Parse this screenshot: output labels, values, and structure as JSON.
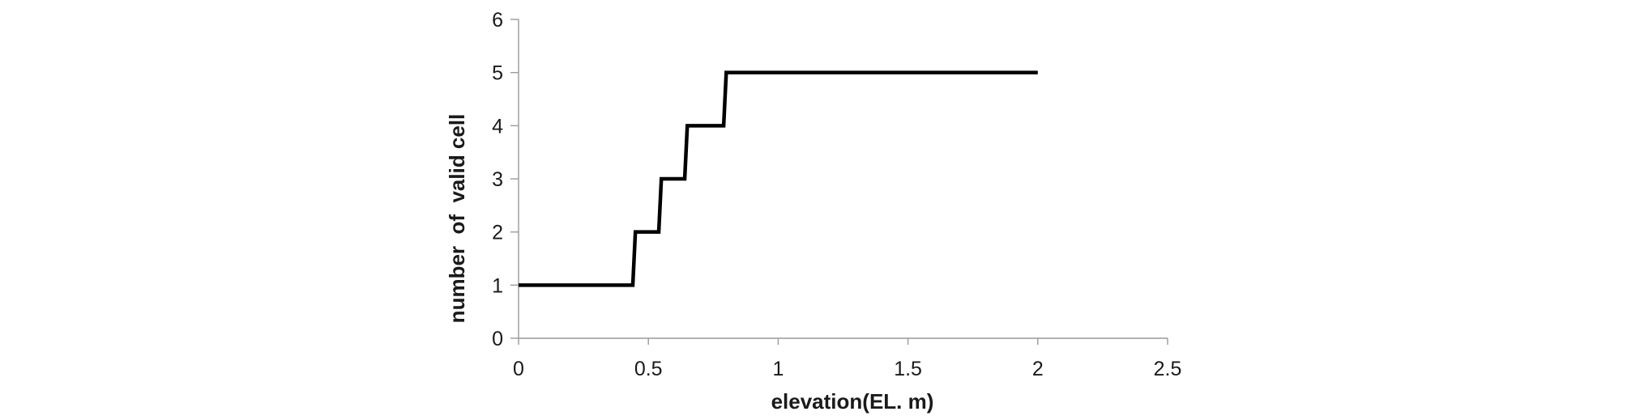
{
  "chart_data": {
    "type": "line",
    "subtype": "step",
    "title": "",
    "xlabel": "elevation(EL. m)",
    "ylabel": "number  of  valid cell",
    "xlim": [
      0,
      2.5
    ],
    "ylim": [
      0,
      6
    ],
    "x_ticks": [
      0,
      0.5,
      1,
      1.5,
      2,
      2.5
    ],
    "x_tick_labels": [
      "0",
      "0.5",
      "1",
      "1.5",
      "2",
      "2.5"
    ],
    "y_ticks": [
      0,
      1,
      2,
      3,
      4,
      5,
      6
    ],
    "y_tick_labels": [
      "0",
      "1",
      "2",
      "3",
      "4",
      "5",
      "6"
    ],
    "grid": false,
    "legend": false,
    "background": "#ffffff",
    "axis_color": "#9a9a9a",
    "line_color": "#000000",
    "text_color": "#1a1a1a",
    "series": [
      {
        "points": [
          [
            0,
            1
          ],
          [
            0.44,
            1
          ],
          [
            0.45,
            2
          ],
          [
            0.54,
            2
          ],
          [
            0.55,
            3
          ],
          [
            0.64,
            3
          ],
          [
            0.65,
            4
          ],
          [
            0.79,
            4
          ],
          [
            0.8,
            5
          ],
          [
            2,
            5
          ]
        ]
      }
    ]
  }
}
